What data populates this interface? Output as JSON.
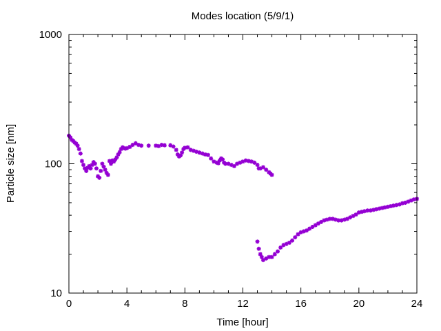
{
  "chart_data": {
    "type": "scatter",
    "title": "Modes location (5/9/1)",
    "xlabel": "Time [hour]",
    "ylabel": "Particle size [nm]",
    "xlim": [
      0,
      24
    ],
    "ylim": [
      10,
      1000
    ],
    "yscale": "log",
    "xticks": [
      0,
      4,
      8,
      12,
      16,
      20,
      24
    ],
    "yticks": [
      10,
      100,
      1000
    ],
    "xtick_labels": [
      "0",
      "4",
      "8",
      "12",
      "16",
      "20",
      "24"
    ],
    "ytick_labels": [
      "10",
      "100",
      "1000"
    ],
    "grid": false,
    "legend": "none",
    "marker": "star",
    "series": [
      {
        "color": "#9400d3",
        "points": [
          [
            0.0,
            165
          ],
          [
            0.1,
            160
          ],
          [
            0.2,
            153
          ],
          [
            0.3,
            150
          ],
          [
            0.4,
            146
          ],
          [
            0.5,
            143
          ],
          [
            0.6,
            138
          ],
          [
            0.7,
            130
          ],
          [
            0.8,
            120
          ],
          [
            0.9,
            105
          ],
          [
            1.0,
            98
          ],
          [
            1.1,
            92
          ],
          [
            1.2,
            88
          ],
          [
            1.3,
            93
          ],
          [
            1.4,
            96
          ],
          [
            1.5,
            92
          ],
          [
            1.6,
            98
          ],
          [
            1.7,
            103
          ],
          [
            1.8,
            100
          ],
          [
            1.9,
            92
          ],
          [
            2.0,
            80
          ],
          [
            2.1,
            78
          ],
          [
            2.2,
            88
          ],
          [
            2.3,
            100
          ],
          [
            2.4,
            95
          ],
          [
            2.5,
            90
          ],
          [
            2.6,
            85
          ],
          [
            2.7,
            82
          ],
          [
            2.8,
            105
          ],
          [
            2.9,
            100
          ],
          [
            3.0,
            106
          ],
          [
            3.1,
            104
          ],
          [
            3.2,
            108
          ],
          [
            3.3,
            112
          ],
          [
            3.4,
            118
          ],
          [
            3.5,
            123
          ],
          [
            3.6,
            130
          ],
          [
            3.7,
            134
          ],
          [
            3.8,
            132
          ],
          [
            3.9,
            131
          ],
          [
            4.0,
            132
          ],
          [
            4.2,
            135
          ],
          [
            4.4,
            140
          ],
          [
            4.6,
            144
          ],
          [
            4.8,
            140
          ],
          [
            5.0,
            138
          ],
          [
            5.5,
            138
          ],
          [
            6.0,
            138
          ],
          [
            6.2,
            137
          ],
          [
            6.4,
            140
          ],
          [
            6.6,
            139
          ],
          [
            7.0,
            139
          ],
          [
            7.2,
            136
          ],
          [
            7.4,
            128
          ],
          [
            7.5,
            118
          ],
          [
            7.6,
            114
          ],
          [
            7.7,
            116
          ],
          [
            7.8,
            122
          ],
          [
            7.9,
            130
          ],
          [
            8.0,
            133
          ],
          [
            8.2,
            134
          ],
          [
            8.4,
            128
          ],
          [
            8.6,
            126
          ],
          [
            8.8,
            124
          ],
          [
            9.0,
            122
          ],
          [
            9.2,
            120
          ],
          [
            9.4,
            118
          ],
          [
            9.6,
            117
          ],
          [
            9.8,
            110
          ],
          [
            10.0,
            104
          ],
          [
            10.2,
            102
          ],
          [
            10.3,
            101
          ],
          [
            10.4,
            106
          ],
          [
            10.5,
            110
          ],
          [
            10.6,
            108
          ],
          [
            10.7,
            102
          ],
          [
            10.8,
            100
          ],
          [
            11.0,
            100
          ],
          [
            11.2,
            98
          ],
          [
            11.4,
            96
          ],
          [
            11.6,
            100
          ],
          [
            11.8,
            102
          ],
          [
            12.0,
            104
          ],
          [
            12.2,
            106
          ],
          [
            12.4,
            105
          ],
          [
            12.6,
            104
          ],
          [
            12.8,
            102
          ],
          [
            13.0,
            98
          ],
          [
            13.1,
            92
          ],
          [
            13.2,
            92
          ],
          [
            13.4,
            94
          ],
          [
            13.6,
            90
          ],
          [
            13.8,
            86
          ],
          [
            13.9,
            84
          ],
          [
            14.0,
            82
          ],
          [
            13.0,
            25
          ],
          [
            13.1,
            22
          ],
          [
            13.2,
            20
          ],
          [
            13.3,
            19
          ],
          [
            13.4,
            18
          ],
          [
            13.6,
            18.5
          ],
          [
            13.8,
            19
          ],
          [
            14.0,
            19
          ],
          [
            14.2,
            20
          ],
          [
            14.4,
            21
          ],
          [
            14.6,
            22.5
          ],
          [
            14.8,
            23.5
          ],
          [
            15.0,
            24
          ],
          [
            15.2,
            24.5
          ],
          [
            15.4,
            25.5
          ],
          [
            15.6,
            27
          ],
          [
            15.8,
            28.5
          ],
          [
            16.0,
            29.5
          ],
          [
            16.2,
            30
          ],
          [
            16.4,
            30.5
          ],
          [
            16.6,
            31.5
          ],
          [
            16.8,
            32.5
          ],
          [
            17.0,
            33.5
          ],
          [
            17.2,
            34.5
          ],
          [
            17.4,
            35.5
          ],
          [
            17.6,
            36.5
          ],
          [
            17.8,
            37
          ],
          [
            18.0,
            37.5
          ],
          [
            18.2,
            37.5
          ],
          [
            18.4,
            37
          ],
          [
            18.6,
            36.5
          ],
          [
            18.8,
            36.5
          ],
          [
            19.0,
            37
          ],
          [
            19.2,
            37.5
          ],
          [
            19.4,
            38.5
          ],
          [
            19.6,
            39.5
          ],
          [
            19.8,
            40.5
          ],
          [
            20.0,
            42
          ],
          [
            20.2,
            42.5
          ],
          [
            20.4,
            43
          ],
          [
            20.6,
            43.5
          ],
          [
            20.8,
            43.5
          ],
          [
            21.0,
            44
          ],
          [
            21.2,
            44.5
          ],
          [
            21.4,
            45
          ],
          [
            21.6,
            45.5
          ],
          [
            21.8,
            46
          ],
          [
            22.0,
            46.5
          ],
          [
            22.2,
            47
          ],
          [
            22.4,
            47.5
          ],
          [
            22.6,
            48
          ],
          [
            22.8,
            48.5
          ],
          [
            23.0,
            49.5
          ],
          [
            23.2,
            50
          ],
          [
            23.4,
            51
          ],
          [
            23.6,
            52
          ],
          [
            23.8,
            53
          ],
          [
            24.0,
            53.5
          ]
        ]
      }
    ]
  }
}
